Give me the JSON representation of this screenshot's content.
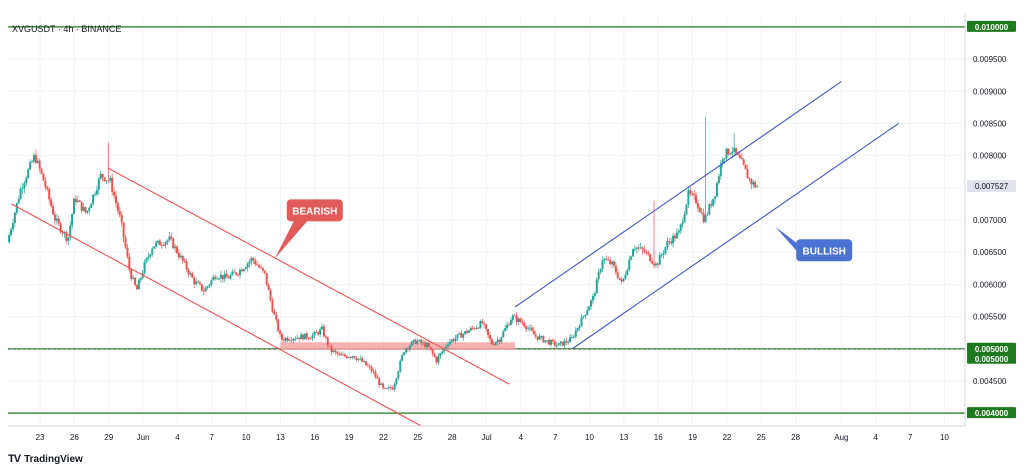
{
  "chart_data": {
    "type": "candlestick",
    "title": "XVGUSDT · 4h · BINANCE",
    "ylim": [
      0.0038,
      0.0102
    ],
    "y_ticks": [
      "0.004500",
      "0.005500",
      "0.006000",
      "0.006500",
      "0.007000",
      "0.007500",
      "0.008000",
      "0.008500",
      "0.009000",
      "0.009500"
    ],
    "x_ticks": [
      {
        "label": "23",
        "day": 23
      },
      {
        "label": "26",
        "day": 26
      },
      {
        "label": "29",
        "day": 29
      },
      {
        "label": "Jun",
        "day": 32
      },
      {
        "label": "4",
        "day": 35
      },
      {
        "label": "7",
        "day": 38
      },
      {
        "label": "10",
        "day": 41
      },
      {
        "label": "13",
        "day": 44
      },
      {
        "label": "16",
        "day": 47
      },
      {
        "label": "19",
        "day": 50
      },
      {
        "label": "22",
        "day": 53
      },
      {
        "label": "25",
        "day": 56
      },
      {
        "label": "28",
        "day": 59
      },
      {
        "label": "Jul",
        "day": 62
      },
      {
        "label": "4",
        "day": 65
      },
      {
        "label": "7",
        "day": 68
      },
      {
        "label": "10",
        "day": 71
      },
      {
        "label": "13",
        "day": 74
      },
      {
        "label": "16",
        "day": 77
      },
      {
        "label": "19",
        "day": 80
      },
      {
        "label": "22",
        "day": 83
      },
      {
        "label": "25",
        "day": 86
      },
      {
        "label": "28",
        "day": 89
      },
      {
        "label": "Aug",
        "day": 93
      },
      {
        "label": "4",
        "day": 96
      },
      {
        "label": "7",
        "day": 99
      },
      {
        "label": "10",
        "day": 102
      }
    ],
    "x_range_days": [
      20.2,
      103.8
    ],
    "price_waypoints": [
      {
        "day": 20.3,
        "price": 0.00665
      },
      {
        "day": 21.5,
        "price": 0.0075
      },
      {
        "day": 22.7,
        "price": 0.008
      },
      {
        "day": 23.5,
        "price": 0.0076
      },
      {
        "day": 24.5,
        "price": 0.007
      },
      {
        "day": 25.6,
        "price": 0.0067
      },
      {
        "day": 26.2,
        "price": 0.00735
      },
      {
        "day": 27.2,
        "price": 0.0071
      },
      {
        "day": 28.5,
        "price": 0.0077
      },
      {
        "day": 29.3,
        "price": 0.0076
      },
      {
        "day": 30.2,
        "price": 0.007
      },
      {
        "day": 31.0,
        "price": 0.0062
      },
      {
        "day": 31.6,
        "price": 0.0059
      },
      {
        "day": 32.3,
        "price": 0.0063
      },
      {
        "day": 33.0,
        "price": 0.0066
      },
      {
        "day": 34.5,
        "price": 0.0067
      },
      {
        "day": 35.5,
        "price": 0.0064
      },
      {
        "day": 36.6,
        "price": 0.00605
      },
      {
        "day": 37.5,
        "price": 0.0059
      },
      {
        "day": 38.5,
        "price": 0.00615
      },
      {
        "day": 39.5,
        "price": 0.0061
      },
      {
        "day": 40.5,
        "price": 0.0062
      },
      {
        "day": 41.7,
        "price": 0.0064
      },
      {
        "day": 42.8,
        "price": 0.00615
      },
      {
        "day": 43.5,
        "price": 0.0056
      },
      {
        "day": 44.2,
        "price": 0.00515
      },
      {
        "day": 45.5,
        "price": 0.00518
      },
      {
        "day": 47.0,
        "price": 0.0052
      },
      {
        "day": 47.8,
        "price": 0.0053
      },
      {
        "day": 48.5,
        "price": 0.00498
      },
      {
        "day": 49.5,
        "price": 0.00488
      },
      {
        "day": 50.5,
        "price": 0.0049
      },
      {
        "day": 51.3,
        "price": 0.0048
      },
      {
        "day": 52.2,
        "price": 0.00465
      },
      {
        "day": 53.2,
        "price": 0.00435
      },
      {
        "day": 54.0,
        "price": 0.0044
      },
      {
        "day": 55.0,
        "price": 0.005
      },
      {
        "day": 56.0,
        "price": 0.00512
      },
      {
        "day": 57.0,
        "price": 0.00505
      },
      {
        "day": 57.8,
        "price": 0.00482
      },
      {
        "day": 58.8,
        "price": 0.0051
      },
      {
        "day": 59.8,
        "price": 0.0052
      },
      {
        "day": 60.8,
        "price": 0.0053
      },
      {
        "day": 61.8,
        "price": 0.0054
      },
      {
        "day": 62.6,
        "price": 0.00508
      },
      {
        "day": 63.3,
        "price": 0.00515
      },
      {
        "day": 64.4,
        "price": 0.0055
      },
      {
        "day": 65.5,
        "price": 0.00538
      },
      {
        "day": 66.4,
        "price": 0.0052
      },
      {
        "day": 67.4,
        "price": 0.00512
      },
      {
        "day": 68.4,
        "price": 0.00505
      },
      {
        "day": 69.6,
        "price": 0.00515
      },
      {
        "day": 70.6,
        "price": 0.0055
      },
      {
        "day": 71.5,
        "price": 0.0058
      },
      {
        "day": 72.3,
        "price": 0.0064
      },
      {
        "day": 73.2,
        "price": 0.0063
      },
      {
        "day": 74.0,
        "price": 0.006
      },
      {
        "day": 75.0,
        "price": 0.0066
      },
      {
        "day": 76.0,
        "price": 0.0065
      },
      {
        "day": 77.0,
        "price": 0.0063
      },
      {
        "day": 78.0,
        "price": 0.00665
      },
      {
        "day": 79.0,
        "price": 0.0068
      },
      {
        "day": 79.8,
        "price": 0.0074
      },
      {
        "day": 80.5,
        "price": 0.0073
      },
      {
        "day": 81.2,
        "price": 0.007
      },
      {
        "day": 82.1,
        "price": 0.0074
      },
      {
        "day": 82.8,
        "price": 0.008
      },
      {
        "day": 83.6,
        "price": 0.0081
      },
      {
        "day": 84.4,
        "price": 0.0079
      },
      {
        "day": 85.2,
        "price": 0.0076
      },
      {
        "day": 85.7,
        "price": 0.007527
      }
    ],
    "spikes": [
      {
        "day": 29.0,
        "high": 0.0082
      },
      {
        "day": 76.7,
        "high": 0.0073
      },
      {
        "day": 81.2,
        "high": 0.0086
      },
      {
        "day": 83.6,
        "high": 0.00835
      }
    ],
    "horizontal_levels": [
      {
        "price": 0.01,
        "label": "0.010000"
      },
      {
        "price": 0.005,
        "label": "0.005000"
      },
      {
        "price": 0.005,
        "label": "0.005000"
      },
      {
        "price": 0.004,
        "label": "0.004000"
      }
    ],
    "current_price": {
      "price": 0.007527,
      "label": "0.007527"
    },
    "support_zone": {
      "from_day": 44.0,
      "to_day": 64.5,
      "low": 0.00498,
      "high": 0.0051
    },
    "bearish_channel": {
      "upper": [
        {
          "day": 29.0,
          "price": 0.0078
        },
        {
          "day": 64.0,
          "price": 0.00445
        }
      ],
      "lower": [
        {
          "day": 20.5,
          "price": 0.00725
        },
        {
          "day": 56.3,
          "price": 0.0038
        }
      ]
    },
    "bullish_channel": {
      "upper": [
        {
          "day": 64.5,
          "price": 0.00565
        },
        {
          "day": 93.0,
          "price": 0.00915
        }
      ],
      "lower": [
        {
          "day": 69.5,
          "price": 0.005
        },
        {
          "day": 98.0,
          "price": 0.0085
        }
      ]
    },
    "annotations": [
      {
        "text": "BEARISH",
        "color": "#e25b5b",
        "anchor_day": 47.0,
        "anchor_price": 0.00715,
        "pointer_day": 43.5,
        "pointer_price": 0.0064
      },
      {
        "text": "BULLISH",
        "color": "#4a72d4",
        "anchor_day": 91.5,
        "anchor_price": 0.00653,
        "pointer_day": 87.2,
        "pointer_price": 0.0069
      }
    ],
    "colors": {
      "up": "#26a69a",
      "down": "#ef5350",
      "bear_line": "#f05252",
      "bull_line": "#3f56c8",
      "level": "#1f7a1f",
      "zone": "#f4a3a3"
    }
  },
  "brand": {
    "logo": "TV",
    "name": "TradingView"
  }
}
